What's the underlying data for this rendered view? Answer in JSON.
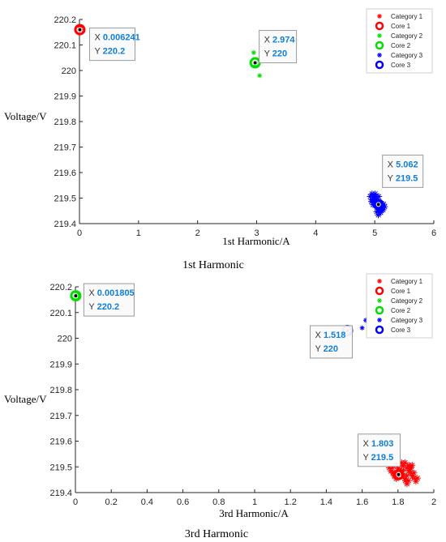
{
  "chart_data": [
    {
      "type": "scatter",
      "caption": "1st Harmonic",
      "xlabel": "1st Harmonic/A",
      "ylabel": "Voltage/V",
      "xlim": [
        0,
        6
      ],
      "ylim": [
        219.4,
        220.2
      ],
      "xticks": [
        "0",
        "1",
        "2",
        "3",
        "4",
        "5",
        "6"
      ],
      "yticks": [
        "219.4",
        "219.5",
        "219.6",
        "219.7",
        "219.8",
        "219.9",
        "220",
        "220.1",
        "220.2"
      ],
      "grid": false,
      "legend_position": "top-right",
      "series": [
        {
          "name": "Category 1",
          "marker": "asterisk",
          "color": "#ff0000",
          "points": [
            [
              0.0,
              220.16
            ],
            [
              0.01,
              220.17
            ],
            [
              0.02,
              220.16
            ]
          ]
        },
        {
          "name": "Core 1",
          "marker": "ring",
          "color": "#ff0000",
          "points": [
            [
              0.006241,
              220.16
            ]
          ]
        },
        {
          "name": "Category 2",
          "marker": "asterisk",
          "color": "#00dd00",
          "points": [
            [
              2.95,
              220.07
            ],
            [
              2.98,
              220.03
            ],
            [
              3.05,
              219.98
            ],
            [
              2.97,
              220.02
            ]
          ]
        },
        {
          "name": "Core 2",
          "marker": "ring",
          "color": "#00dd00",
          "points": [
            [
              2.974,
              220.03
            ]
          ]
        },
        {
          "name": "Category 3",
          "marker": "asterisk",
          "color": "#0000ff",
          "points": [
            [
              4.95,
              219.5
            ],
            [
              4.98,
              219.51
            ],
            [
              5.0,
              219.49
            ],
            [
              5.02,
              219.48
            ],
            [
              5.05,
              219.47
            ],
            [
              5.08,
              219.46
            ],
            [
              5.1,
              219.45
            ],
            [
              5.12,
              219.47
            ],
            [
              5.04,
              219.5
            ],
            [
              4.97,
              219.48
            ],
            [
              5.06,
              219.44
            ],
            [
              5.14,
              219.46
            ]
          ]
        },
        {
          "name": "Core 3",
          "marker": "ring",
          "color": "#0000ff",
          "points": [
            [
              5.062,
              219.475
            ]
          ]
        }
      ],
      "datatips": [
        {
          "point": [
            0.006241,
            220.16
          ],
          "x_label": "X",
          "x": "0.006241",
          "y_label": "Y",
          "y": "220.2"
        },
        {
          "point": [
            2.974,
            220.03
          ],
          "x_label": "X",
          "x": "2.974",
          "y_label": "Y",
          "y": "220"
        },
        {
          "point": [
            5.062,
            219.475
          ],
          "x_label": "X",
          "x": "5.062",
          "y_label": "Y",
          "y": "219.5"
        }
      ]
    },
    {
      "type": "scatter",
      "caption": "3rd Harmonic",
      "xlabel": "3rd Harmonic/A",
      "ylabel": "Voltage/V",
      "xlim": [
        0,
        2
      ],
      "ylim": [
        219.4,
        220.2
      ],
      "xticks": [
        "0",
        "0.2",
        "0.4",
        "0.6",
        "0.8",
        "1",
        "1.2",
        "1.4",
        "1.6",
        "1.8",
        "2"
      ],
      "yticks": [
        "219.4",
        "219.5",
        "219.6",
        "219.7",
        "219.8",
        "219.9",
        "220",
        "220.1",
        "220.2"
      ],
      "grid": false,
      "legend_position": "top-right",
      "series": [
        {
          "name": "Category 1",
          "marker": "asterisk",
          "color": "#ff0000",
          "points": [
            [
              1.76,
              219.49
            ],
            [
              1.78,
              219.47
            ],
            [
              1.8,
              219.5
            ],
            [
              1.82,
              219.48
            ],
            [
              1.84,
              219.46
            ],
            [
              1.86,
              219.49
            ],
            [
              1.88,
              219.47
            ],
            [
              1.9,
              219.45
            ],
            [
              1.83,
              219.51
            ],
            [
              1.87,
              219.5
            ],
            [
              1.79,
              219.46
            ],
            [
              1.85,
              219.44
            ]
          ]
        },
        {
          "name": "Core 1",
          "marker": "ring",
          "color": "#ff0000",
          "points": [
            [
              1.803,
              219.47
            ]
          ]
        },
        {
          "name": "Category 2",
          "marker": "asterisk",
          "color": "#00dd00",
          "points": [
            [
              0.0,
              220.16
            ],
            [
              0.01,
              220.17
            ],
            [
              0.02,
              220.16
            ]
          ]
        },
        {
          "name": "Core 2",
          "marker": "ring",
          "color": "#00dd00",
          "points": [
            [
              0.001805,
              220.165
            ]
          ]
        },
        {
          "name": "Category 3",
          "marker": "asterisk",
          "color": "#0000ff",
          "points": [
            [
              1.62,
              220.07
            ],
            [
              1.6,
              220.04
            ],
            [
              1.52,
              220.03
            ]
          ]
        },
        {
          "name": "Core 3",
          "marker": "ring",
          "color": "#0000ff",
          "points": [
            [
              1.518,
              220.03
            ]
          ]
        }
      ],
      "datatips": [
        {
          "point": [
            0.001805,
            220.165
          ],
          "x_label": "X",
          "x": "0.001805",
          "y_label": "Y",
          "y": "220.2"
        },
        {
          "point": [
            1.518,
            220.03
          ],
          "x_label": "X",
          "x": "1.518",
          "y_label": "Y",
          "y": "220"
        },
        {
          "point": [
            1.803,
            219.47
          ],
          "x_label": "X",
          "x": "1.803",
          "y_label": "Y",
          "y": "219.5"
        }
      ]
    }
  ]
}
